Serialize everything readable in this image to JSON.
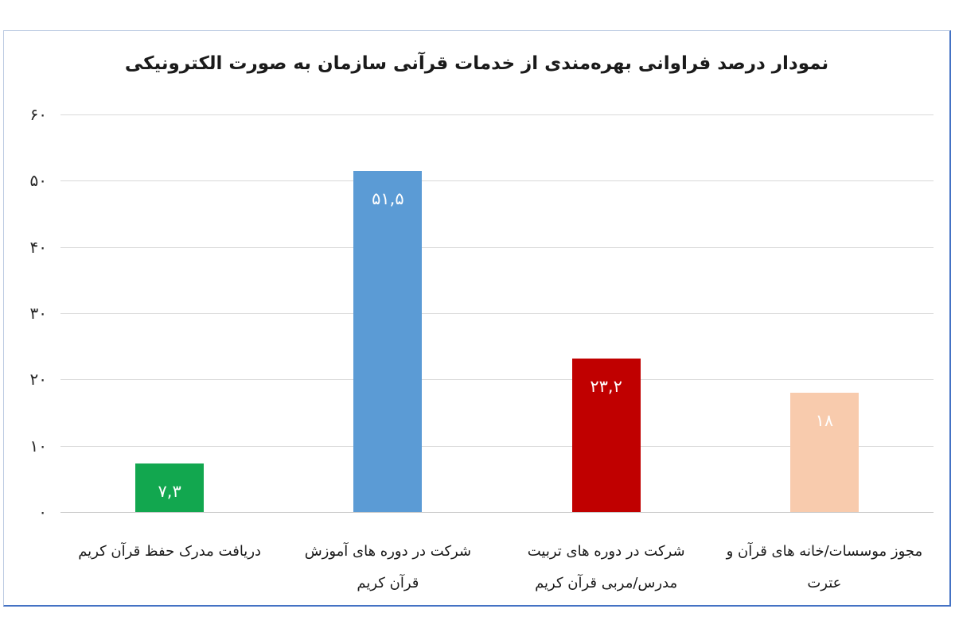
{
  "chart_data": {
    "type": "bar",
    "title": "نمودار درصد فراوانی بهره‌مندی از خدمات قرآنی سازمان به صورت الکترونیکی",
    "direction": "rtl",
    "categories": [
      "دریافت مدرک حفظ قرآن کریم",
      "شرکت در دوره های آموزش قرآن کریم",
      "شرکت در دوره های تربیت مدرس/مربی قرآن کریم",
      "مجوز موسسات/خانه های قرآن و عترت"
    ],
    "category_lines": [
      [
        "دریافت مدرک حفظ قرآن کریم"
      ],
      [
        "شرکت در دوره های آموزش",
        "قرآن کریم"
      ],
      [
        "شرکت در دوره های تربیت",
        "مدرس/مربی قرآن کریم"
      ],
      [
        "مجوز موسسات/خانه های قرآن و",
        "عترت"
      ]
    ],
    "values": [
      7.3,
      51.5,
      23.2,
      18
    ],
    "value_labels": [
      "۷,۳",
      "۵۱,۵",
      "۲۳,۲",
      "۱۸"
    ],
    "bar_colors": [
      "#12a74f",
      "#5b9bd5",
      "#c00000",
      "#f8cbad"
    ],
    "value_label_color": "#ffffff",
    "ylim": [
      0,
      60
    ],
    "ytick_step": 10,
    "yticks": [
      {
        "value": 0,
        "label": "۰"
      },
      {
        "value": 10,
        "label": "۱۰"
      },
      {
        "value": 20,
        "label": "۲۰"
      },
      {
        "value": 30,
        "label": "۳۰"
      },
      {
        "value": 40,
        "label": "۴۰"
      },
      {
        "value": 50,
        "label": "۵۰"
      },
      {
        "value": 60,
        "label": "۶۰"
      }
    ],
    "grid": true,
    "gridline_color": "#d9d9d9",
    "baseline_color": "#c8c8c8",
    "frame_border_color": "#4472c4",
    "legend": "none",
    "xlabel": "",
    "ylabel": ""
  }
}
